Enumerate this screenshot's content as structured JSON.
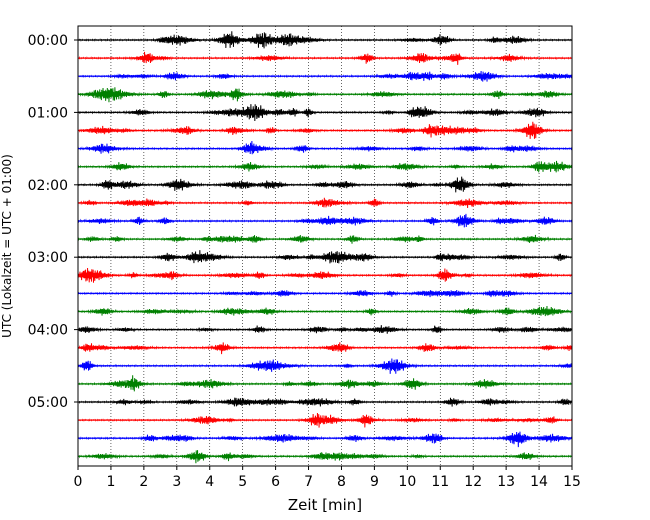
{
  "chart_data": {
    "type": "line",
    "title": "",
    "xlabel": "Zeit  [min]",
    "ylabel": "UTC (Lokalzeit = UTC + 01:00)",
    "xlim": [
      0,
      15
    ],
    "x_ticks": [
      "0",
      "1",
      "2",
      "3",
      "4",
      "5",
      "6",
      "7",
      "8",
      "9",
      "10",
      "11",
      "12",
      "13",
      "14",
      "15"
    ],
    "y_ticks": [
      "00:00",
      "01:00",
      "02:00",
      "03:00",
      "04:00",
      "05:00"
    ],
    "grid": "vertical dotted",
    "trace_interval_minutes": 15,
    "trace_count": 24,
    "trace_colors": [
      "#000000",
      "#ff0000",
      "#0000ff",
      "#008000"
    ],
    "series_description": "Helicorder seismogram: 24 traces of 15 minutes each, 00:00 to 05:45 UTC, colors cycling black/red/blue/green"
  }
}
